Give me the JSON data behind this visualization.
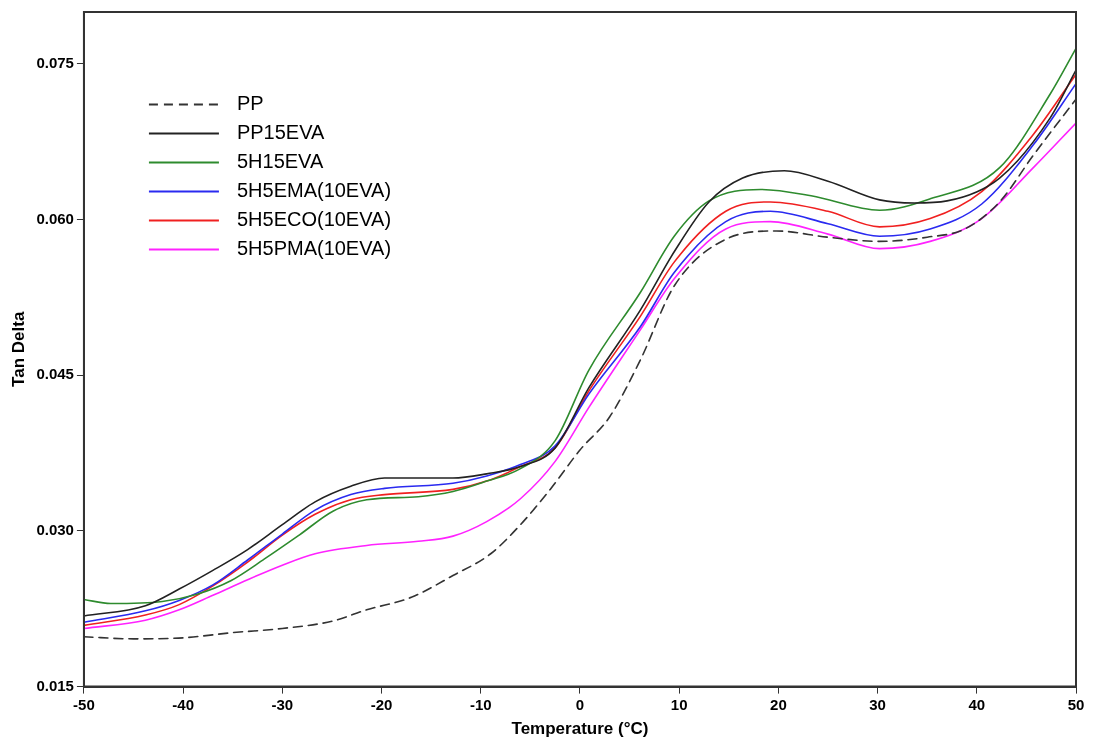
{
  "chart_data": {
    "type": "line",
    "xlabel": "Temperature (°C)",
    "ylabel": "Tan Delta",
    "xlim": [
      -50,
      50
    ],
    "ylim": [
      0.015,
      0.08
    ],
    "xticks": [
      -50,
      -40,
      -30,
      -20,
      -10,
      0,
      10,
      20,
      30,
      40,
      50
    ],
    "yticks": [
      {
        "value": 0.015,
        "label": "0.015"
      },
      {
        "value": 0.03,
        "label": "0.030"
      },
      {
        "value": 0.045,
        "label": "0.045"
      },
      {
        "value": 0.06,
        "label": "0.060"
      },
      {
        "value": 0.075,
        "label": "0.075"
      }
    ],
    "grid": false,
    "legend": "top left",
    "marker": "none",
    "series": [
      {
        "name": "PP",
        "color": "#333333",
        "line_style": "dashed",
        "x": [
          -50,
          -45,
          -40,
          -35,
          -30,
          -25,
          -21.5,
          -17,
          -12.8,
          -9,
          -6,
          -3,
          0,
          3,
          6.1,
          9.5,
          14.7,
          19.8,
          25,
          30.2,
          35,
          38.8,
          42.3,
          45.7,
          50
        ],
        "values": [
          0.0198,
          0.0196,
          0.0197,
          0.0202,
          0.0206,
          0.0213,
          0.0224,
          0.0236,
          0.0257,
          0.0278,
          0.0306,
          0.034,
          0.0378,
          0.041,
          0.0465,
          0.0536,
          0.0581,
          0.0589,
          0.0583,
          0.0579,
          0.0583,
          0.0591,
          0.0617,
          0.0662,
          0.0716
        ]
      },
      {
        "name": "PP15EVA",
        "color": "#222222",
        "line_style": "solid",
        "x": [
          -50,
          -43.8,
          -40.4,
          -37,
          -33.5,
          -30,
          -26.7,
          -23.1,
          -19.7,
          -16,
          -12.8,
          -9.4,
          -6,
          -2.5,
          0.9,
          6.1,
          9.5,
          13,
          16.4,
          20.6,
          25,
          30.2,
          33.7,
          37,
          42.3,
          47.4,
          50
        ],
        "values": [
          0.0218,
          0.0228,
          0.0244,
          0.0262,
          0.0282,
          0.0306,
          0.0328,
          0.0343,
          0.0351,
          0.0351,
          0.0351,
          0.0355,
          0.0362,
          0.038,
          0.0438,
          0.0513,
          0.0569,
          0.0617,
          0.064,
          0.0647,
          0.0637,
          0.0619,
          0.0616,
          0.0618,
          0.064,
          0.0698,
          0.0744
        ]
      },
      {
        "name": "5H15EVA",
        "color": "#2e8b2e",
        "line_style": "solid",
        "x": [
          -50,
          -47.3,
          -42.1,
          -38.6,
          -35.2,
          -31.8,
          -28.3,
          -24.9,
          -21.5,
          -16.3,
          -12.8,
          -9.4,
          -6,
          -2.5,
          0.9,
          6.1,
          9.5,
          13,
          18.2,
          23.3,
          30.2,
          35.3,
          42.3,
          47.4,
          50
        ],
        "values": [
          0.0234,
          0.023,
          0.0232,
          0.0239,
          0.0252,
          0.0273,
          0.0296,
          0.0319,
          0.033,
          0.0333,
          0.0338,
          0.0348,
          0.036,
          0.0387,
          0.0455,
          0.053,
          0.0584,
          0.0618,
          0.0629,
          0.0623,
          0.0609,
          0.062,
          0.065,
          0.0721,
          0.0765
        ]
      },
      {
        "name": "5H5EMA(10EVA)",
        "color": "#2a2af0",
        "line_style": "solid",
        "x": [
          -50,
          -43.8,
          -40.4,
          -37,
          -33.5,
          -30,
          -26.7,
          -23.1,
          -19.7,
          -12.8,
          -9.4,
          -6,
          -2.5,
          0.9,
          6.1,
          9.5,
          14.7,
          19.2,
          25,
          30.2,
          35.3,
          40.5,
          45.7,
          50
        ],
        "values": [
          0.0212,
          0.0223,
          0.0233,
          0.0248,
          0.0272,
          0.0297,
          0.032,
          0.0335,
          0.0341,
          0.0346,
          0.0353,
          0.0364,
          0.0382,
          0.0432,
          0.0497,
          0.0549,
          0.0598,
          0.0608,
          0.0596,
          0.0584,
          0.0591,
          0.0615,
          0.0672,
          0.0731
        ]
      },
      {
        "name": "5H5ECO(10EVA)",
        "color": "#f02020",
        "line_style": "solid",
        "x": [
          -50,
          -43.8,
          -40.4,
          -37,
          -33.5,
          -30,
          -26.7,
          -23.1,
          -19.7,
          -12.8,
          -9.4,
          -6,
          -2.5,
          0.9,
          6.1,
          9.5,
          14.7,
          19.2,
          25,
          30.2,
          35.3,
          40.5,
          45.7,
          50
        ],
        "values": [
          0.0209,
          0.0219,
          0.0229,
          0.0247,
          0.027,
          0.0296,
          0.0316,
          0.033,
          0.0335,
          0.034,
          0.0348,
          0.0362,
          0.038,
          0.0435,
          0.0507,
          0.0559,
          0.0608,
          0.0617,
          0.0608,
          0.0593,
          0.0601,
          0.0627,
          0.0682,
          0.074
        ]
      },
      {
        "name": "5H5PMA(10EVA)",
        "color": "#ff22ff",
        "line_style": "solid",
        "x": [
          -50,
          -43.8,
          -40.4,
          -37,
          -33.5,
          -30,
          -26.7,
          -21.5,
          -16.3,
          -12.8,
          -9.4,
          -6,
          -2.5,
          0.9,
          6.1,
          9.5,
          14.7,
          19.2,
          25,
          30.2,
          35.3,
          40.5,
          45.7,
          50
        ],
        "values": [
          0.0206,
          0.0214,
          0.0224,
          0.0238,
          0.0253,
          0.0267,
          0.0278,
          0.0286,
          0.029,
          0.0295,
          0.0309,
          0.0331,
          0.0367,
          0.0419,
          0.0494,
          0.0543,
          0.0591,
          0.0598,
          0.0586,
          0.0572,
          0.0579,
          0.0601,
          0.065,
          0.0693
        ]
      }
    ]
  }
}
